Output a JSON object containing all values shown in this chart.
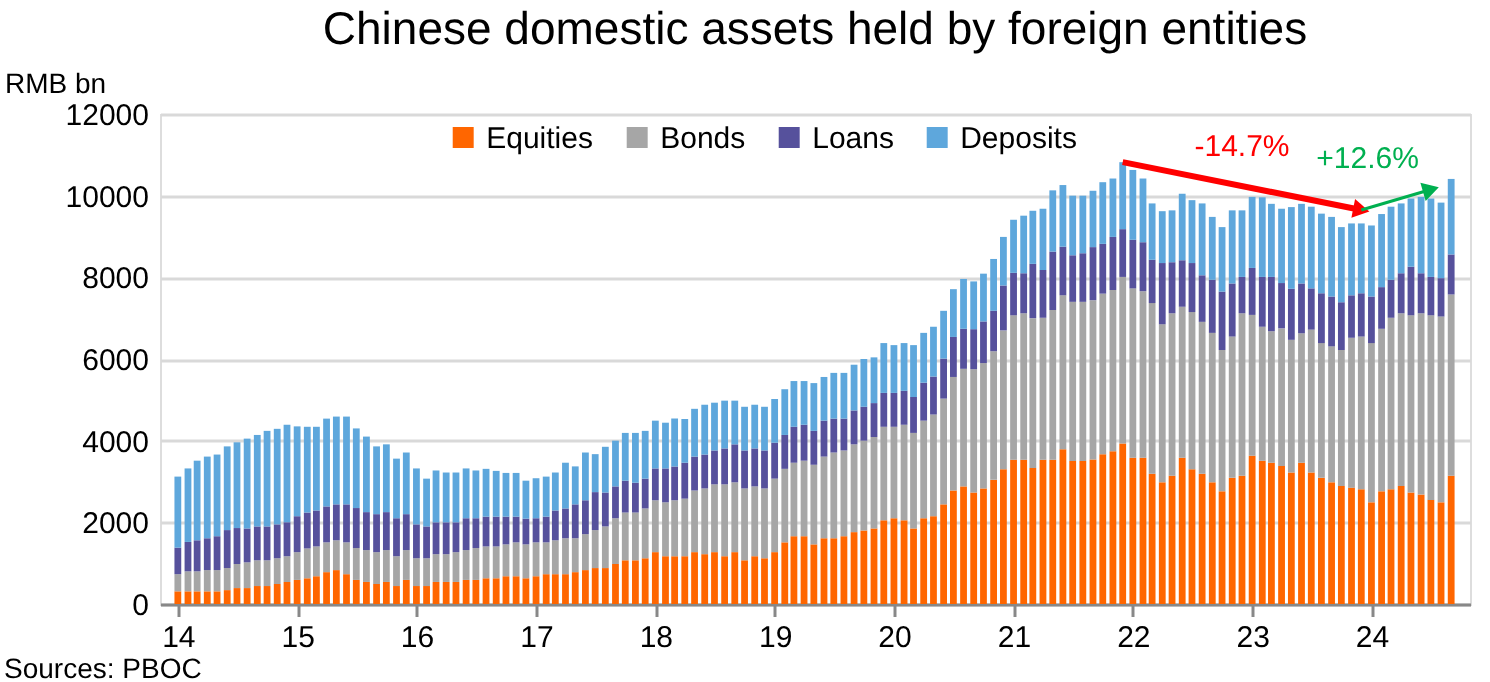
{
  "chart_data": {
    "type": "bar",
    "title": "Chinese domestic assets held by foreign entities",
    "ylabel": "RMB bn",
    "stacked": true,
    "grid": "y",
    "legend": "top",
    "x": [
      "2014-01",
      "2014-02",
      "2014-03",
      "2014-04",
      "2014-05",
      "2014-06",
      "2014-07",
      "2014-08",
      "2014-09",
      "2014-10",
      "2014-11",
      "2014-12",
      "2015-01",
      "2015-02",
      "2015-03",
      "2015-04",
      "2015-05",
      "2015-06",
      "2015-07",
      "2015-08",
      "2015-09",
      "2015-10",
      "2015-11",
      "2015-12",
      "2016-01",
      "2016-02",
      "2016-03",
      "2016-04",
      "2016-05",
      "2016-06",
      "2016-07",
      "2016-08",
      "2016-09",
      "2016-10",
      "2016-11",
      "2016-12",
      "2017-01",
      "2017-02",
      "2017-03",
      "2017-04",
      "2017-05",
      "2017-06",
      "2017-07",
      "2017-08",
      "2017-09",
      "2017-10",
      "2017-11",
      "2017-12",
      "2018-01",
      "2018-02",
      "2018-03",
      "2018-04",
      "2018-05",
      "2018-06",
      "2018-07",
      "2018-08",
      "2018-09",
      "2018-10",
      "2018-11",
      "2018-12",
      "2019-01",
      "2019-02",
      "2019-03",
      "2019-04",
      "2019-05",
      "2019-06",
      "2019-07",
      "2019-08",
      "2019-09",
      "2019-10",
      "2019-11",
      "2019-12",
      "2020-01",
      "2020-02",
      "2020-03",
      "2020-04",
      "2020-05",
      "2020-06",
      "2020-07",
      "2020-08",
      "2020-09",
      "2020-10",
      "2020-11",
      "2020-12",
      "2021-01",
      "2021-02",
      "2021-03",
      "2021-04",
      "2021-05",
      "2021-06",
      "2021-07",
      "2021-08",
      "2021-09",
      "2021-10",
      "2021-11",
      "2021-12",
      "2022-01",
      "2022-02",
      "2022-03",
      "2022-04",
      "2022-05",
      "2022-06",
      "2022-07",
      "2022-08",
      "2022-09",
      "2022-10",
      "2022-11",
      "2022-12",
      "2023-01",
      "2023-02",
      "2023-03",
      "2023-04",
      "2023-05",
      "2023-06",
      "2023-07",
      "2023-08",
      "2023-09",
      "2023-10",
      "2023-11",
      "2023-12",
      "2024-01",
      "2024-02",
      "2024-03",
      "2024-04",
      "2024-05",
      "2024-06",
      "2024-07",
      "2024-08",
      "2024-09"
    ],
    "series": [
      {
        "name": "Equities",
        "color": "#ff6600",
        "values": [
          310,
          310,
          310,
          310,
          310,
          340,
          390,
          390,
          440,
          440,
          490,
          540,
          590,
          630,
          680,
          780,
          830,
          730,
          590,
          540,
          490,
          540,
          440,
          590,
          440,
          440,
          540,
          540,
          540,
          590,
          590,
          630,
          630,
          680,
          680,
          630,
          680,
          730,
          730,
          730,
          780,
          830,
          880,
          880,
          980,
          1070,
          1070,
          1120,
          1270,
          1170,
          1170,
          1170,
          1270,
          1220,
          1270,
          1170,
          1270,
          1070,
          1170,
          1120,
          1270,
          1510,
          1660,
          1660,
          1460,
          1610,
          1610,
          1660,
          1760,
          1800,
          1850,
          2050,
          2100,
          2050,
          1850,
          2100,
          2150,
          2440,
          2780,
          2880,
          2730,
          2830,
          3040,
          3300,
          3530,
          3530,
          3330,
          3530,
          3530,
          3790,
          3500,
          3500,
          3540,
          3670,
          3740,
          3930,
          3580,
          3580,
          3190,
          2980,
          3140,
          3580,
          3300,
          3190,
          2980,
          2760,
          3090,
          3140,
          3630,
          3510,
          3460,
          3380,
          3220,
          3460,
          3220,
          3090,
          2980,
          2890,
          2850,
          2810,
          2490,
          2760,
          2810,
          2890,
          2730,
          2680,
          2550,
          2490,
          3140
        ]
      },
      {
        "name": "Bonds",
        "color": "#a6a6a6",
        "values": [
          420,
          490,
          490,
          520,
          520,
          540,
          590,
          630,
          630,
          630,
          630,
          630,
          680,
          730,
          730,
          730,
          730,
          780,
          780,
          780,
          780,
          780,
          730,
          730,
          680,
          680,
          680,
          680,
          730,
          730,
          780,
          780,
          780,
          780,
          830,
          830,
          830,
          780,
          830,
          880,
          830,
          880,
          930,
          1020,
          1120,
          1170,
          1170,
          1220,
          1270,
          1320,
          1370,
          1410,
          1510,
          1610,
          1660,
          1760,
          1710,
          1760,
          1710,
          1710,
          1800,
          1800,
          1800,
          1850,
          1950,
          2000,
          2100,
          2100,
          2150,
          2200,
          2240,
          2290,
          2240,
          2340,
          2340,
          2390,
          2490,
          2590,
          2780,
          2880,
          3020,
          3070,
          3150,
          3400,
          3540,
          3590,
          3670,
          3480,
          3670,
          3770,
          3900,
          3900,
          3900,
          3930,
          3950,
          4080,
          4150,
          4080,
          4180,
          3870,
          3980,
          3700,
          3850,
          3720,
          3660,
          3460,
          3460,
          3980,
          3450,
          3280,
          3220,
          3370,
          3250,
          3170,
          3500,
          3300,
          3330,
          3330,
          3670,
          3740,
          3900,
          3980,
          4200,
          4230,
          4340,
          4440,
          4520,
          4550,
          4440
        ]
      },
      {
        "name": "Loans",
        "color": "#56519c",
        "values": [
          650,
          720,
          760,
          780,
          830,
          930,
          880,
          830,
          830,
          830,
          830,
          830,
          880,
          880,
          880,
          880,
          880,
          930,
          980,
          930,
          930,
          930,
          930,
          880,
          830,
          780,
          780,
          780,
          730,
          780,
          730,
          730,
          730,
          680,
          630,
          630,
          590,
          630,
          730,
          730,
          830,
          830,
          930,
          830,
          780,
          780,
          730,
          730,
          780,
          830,
          830,
          880,
          830,
          830,
          830,
          880,
          930,
          930,
          930,
          930,
          880,
          830,
          880,
          880,
          830,
          880,
          830,
          780,
          830,
          830,
          830,
          830,
          830,
          830,
          880,
          930,
          930,
          980,
          980,
          980,
          980,
          1020,
          990,
          1100,
          1040,
          980,
          1330,
          1170,
          1430,
          1190,
          1140,
          1190,
          1300,
          1220,
          1300,
          1170,
          1190,
          1200,
          1060,
          1500,
          1250,
          1140,
          1200,
          1140,
          1300,
          1430,
          1300,
          890,
          1150,
          1220,
          1330,
          1110,
          1250,
          1220,
          1010,
          1220,
          1220,
          1170,
          1040,
          1060,
          1140,
          1020,
          930,
          980,
          1190,
          980,
          940,
          940,
          980
        ]
      },
      {
        "name": "Deposits",
        "color": "#5ea7dc",
        "values": [
          1740,
          1800,
          1950,
          2000,
          2000,
          2050,
          2100,
          2200,
          2240,
          2340,
          2340,
          2390,
          2200,
          2100,
          2050,
          2150,
          2150,
          2150,
          1950,
          1850,
          1660,
          1660,
          1460,
          1510,
          1370,
          1170,
          1270,
          1220,
          1220,
          1220,
          1170,
          1170,
          1120,
          1070,
          1070,
          930,
          980,
          980,
          930,
          1120,
          930,
          1170,
          930,
          1120,
          1120,
          1170,
          1220,
          1170,
          1170,
          1120,
          1170,
          1070,
          1170,
          1220,
          1170,
          1170,
          1070,
          1070,
          1070,
          1070,
          1070,
          1120,
          1120,
          1070,
          1170,
          1070,
          1120,
          1120,
          1120,
          1170,
          1120,
          1220,
          1170,
          1170,
          1270,
          1220,
          1220,
          1170,
          1170,
          1220,
          1170,
          1170,
          1270,
          1190,
          1300,
          1410,
          1300,
          1500,
          1500,
          1510,
          1460,
          1410,
          1380,
          1510,
          1430,
          1640,
          1710,
          1560,
          1380,
          1270,
          1270,
          1630,
          1540,
          1760,
          1540,
          1580,
          1790,
          1630,
          1740,
          1950,
          1790,
          1820,
          2000,
          1950,
          2000,
          1950,
          1950,
          1840,
          1760,
          1710,
          1740,
          1790,
          1790,
          1710,
          1670,
          1870,
          1920,
          1850,
          1850
        ]
      }
    ],
    "ylim": [
      0,
      12000
    ],
    "yticks": [
      0,
      2000,
      4000,
      6000,
      8000,
      10000,
      12000
    ],
    "xlim": [
      "2013-12-08",
      "2024-09-28"
    ],
    "xticks": [
      {
        "value": "2014-01",
        "label": "14"
      },
      {
        "value": "2015-01",
        "label": "15"
      },
      {
        "value": "2016-01",
        "label": "16"
      },
      {
        "value": "2017-01",
        "label": "17"
      },
      {
        "value": "2018-01",
        "label": "18"
      },
      {
        "value": "2019-01",
        "label": "19"
      },
      {
        "value": "2020-01",
        "label": "20"
      },
      {
        "value": "2021-01",
        "label": "21"
      },
      {
        "value": "2022-01",
        "label": "22"
      },
      {
        "value": "2023-01",
        "label": "23"
      },
      {
        "value": "2024-01",
        "label": "24"
      }
    ],
    "annotations": [
      {
        "text": "-14.7%",
        "x": "2023-12",
        "y": 9650
      },
      {
        "text": "+12.6%",
        "x": "2024-07",
        "y": 10150
      },
      "Sources: PBOC"
    ]
  }
}
